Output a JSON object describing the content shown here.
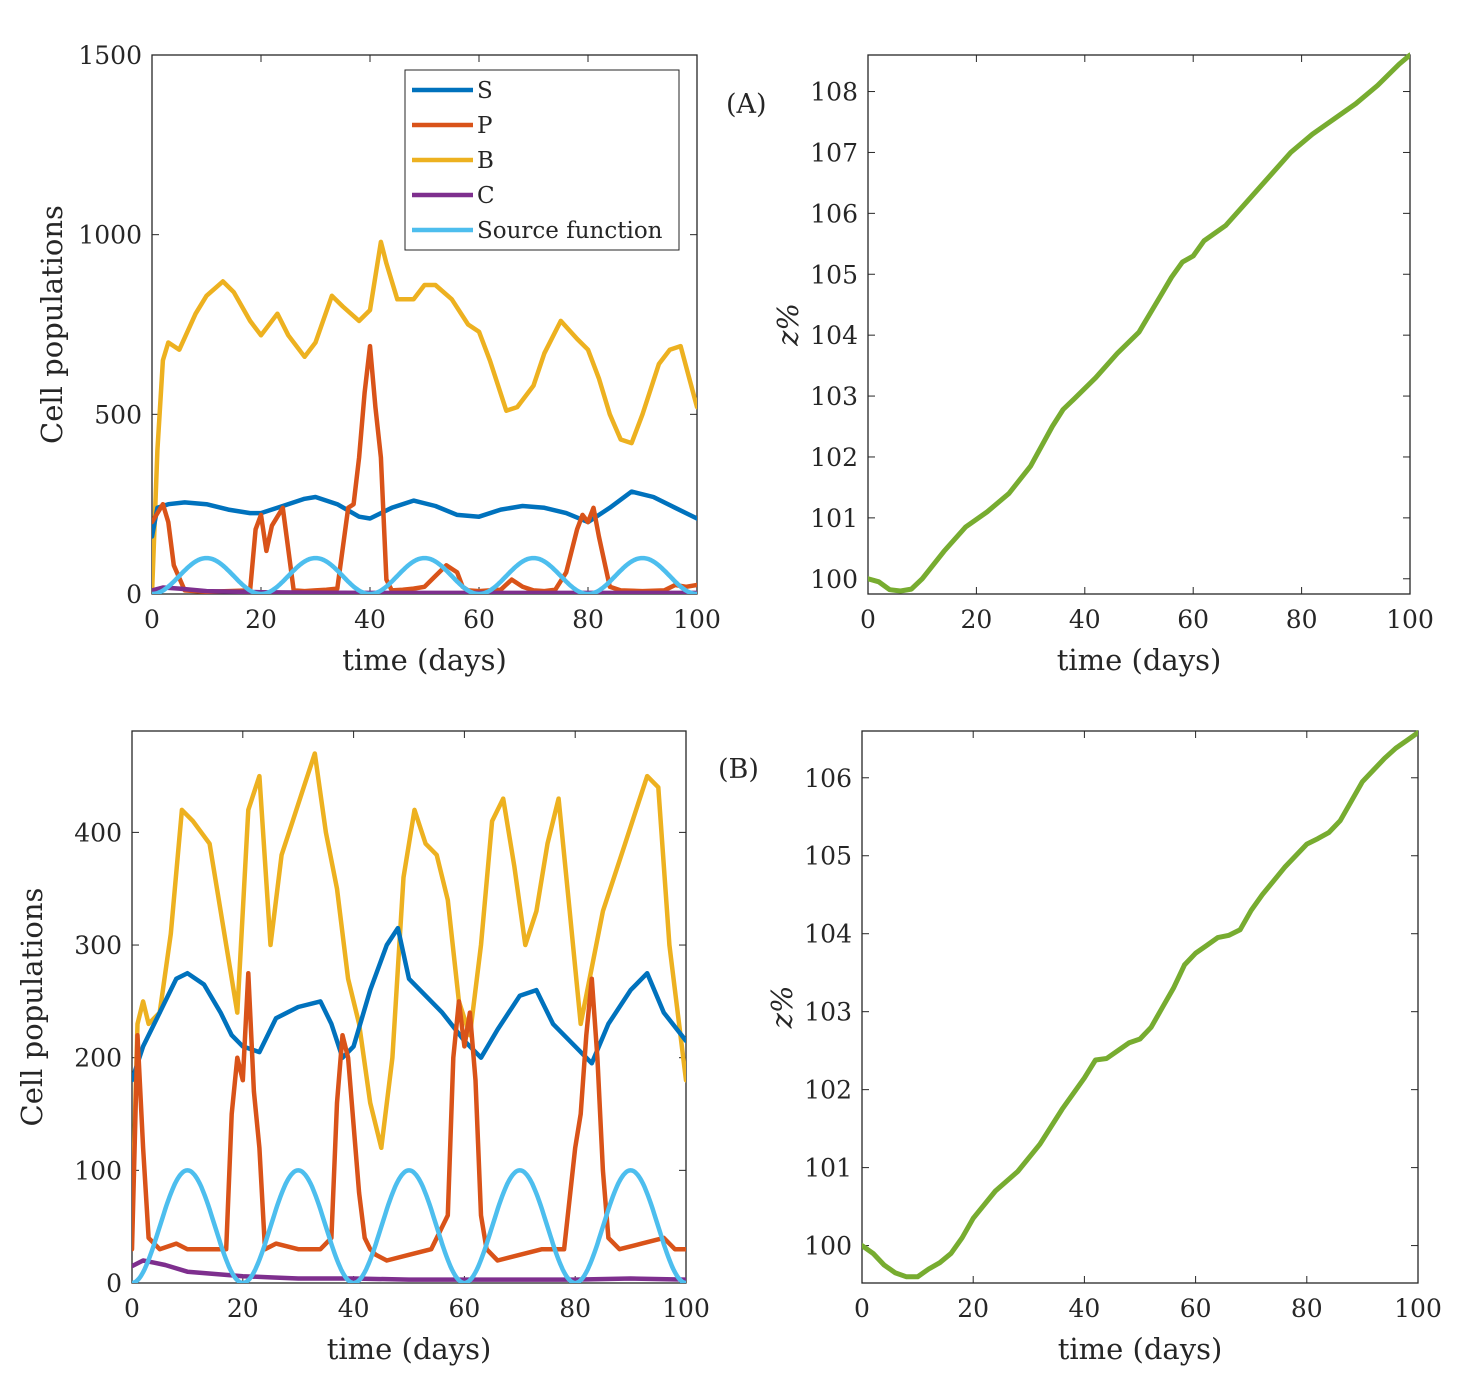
{
  "figure": {
    "panel_labels": [
      "(A)",
      "(B)"
    ]
  },
  "chart_data": [
    {
      "id": "A-left",
      "type": "line",
      "title": "",
      "xlabel": "time (days)",
      "ylabel": "Cell populations",
      "xlim": [
        0,
        100
      ],
      "ylim": [
        0,
        1500
      ],
      "xticks": [
        0,
        20,
        40,
        60,
        80,
        100
      ],
      "yticks": [
        0,
        500,
        1000,
        1500
      ],
      "legend": {
        "placement": "top-right",
        "entries": [
          "S",
          "P",
          "B",
          "C",
          "Source function"
        ]
      },
      "colors": {
        "S": "#0072BD",
        "P": "#D95319",
        "B": "#EDB120",
        "C": "#7E2F8E",
        "Source function": "#4DBEEE"
      },
      "series": [
        {
          "name": "S",
          "x": [
            0,
            1,
            3,
            6,
            10,
            14,
            18,
            20,
            24,
            28,
            30,
            34,
            38,
            40,
            44,
            48,
            52,
            56,
            60,
            64,
            68,
            72,
            76,
            80,
            84,
            88,
            92,
            96,
            100
          ],
          "values": [
            160,
            240,
            250,
            255,
            250,
            235,
            225,
            225,
            245,
            265,
            270,
            250,
            215,
            210,
            240,
            260,
            245,
            220,
            215,
            235,
            245,
            240,
            225,
            200,
            240,
            285,
            270,
            240,
            210
          ]
        },
        {
          "name": "P",
          "x": [
            0,
            2,
            3,
            4,
            6,
            8,
            10,
            14,
            18,
            19,
            20,
            21,
            22,
            24,
            26,
            28,
            30,
            32,
            34,
            36,
            37,
            38,
            39,
            40,
            41,
            42,
            43,
            44,
            46,
            48,
            50,
            52,
            54,
            56,
            57,
            58,
            60,
            62,
            64,
            66,
            68,
            70,
            72,
            74,
            76,
            78,
            79,
            80,
            81,
            82,
            84,
            86,
            90,
            94,
            96,
            98,
            100
          ],
          "values": [
            200,
            250,
            200,
            80,
            10,
            8,
            6,
            8,
            10,
            180,
            220,
            120,
            190,
            240,
            10,
            8,
            10,
            12,
            15,
            240,
            250,
            380,
            560,
            690,
            520,
            380,
            40,
            10,
            12,
            15,
            20,
            50,
            80,
            60,
            20,
            10,
            8,
            10,
            12,
            40,
            20,
            10,
            8,
            12,
            60,
            180,
            220,
            200,
            240,
            160,
            20,
            10,
            8,
            10,
            25,
            20,
            25
          ]
        },
        {
          "name": "B",
          "x": [
            0,
            1,
            2,
            3,
            5,
            8,
            10,
            13,
            15,
            18,
            20,
            23,
            25,
            28,
            30,
            33,
            35,
            38,
            40,
            42,
            43,
            45,
            48,
            50,
            52,
            55,
            58,
            60,
            62,
            65,
            67,
            70,
            72,
            75,
            78,
            80,
            82,
            84,
            86,
            88,
            90,
            93,
            95,
            97,
            100
          ],
          "values": [
            0,
            400,
            650,
            700,
            680,
            780,
            830,
            870,
            840,
            760,
            720,
            780,
            720,
            660,
            700,
            830,
            800,
            760,
            790,
            980,
            920,
            820,
            820,
            860,
            860,
            820,
            750,
            730,
            650,
            510,
            520,
            580,
            670,
            760,
            710,
            680,
            600,
            500,
            430,
            420,
            500,
            640,
            680,
            690,
            520
          ]
        },
        {
          "name": "C",
          "x": [
            0,
            2,
            5,
            10,
            20,
            30,
            40,
            50,
            60,
            70,
            80,
            90,
            100
          ],
          "values": [
            10,
            18,
            15,
            8,
            5,
            4,
            3,
            3,
            3,
            3,
            3,
            3,
            3
          ]
        },
        {
          "name": "Source function",
          "function": "50*(1-cos(2*pi*t/20))",
          "period": 20,
          "amplitude_peak": 100
        }
      ]
    },
    {
      "id": "A-right",
      "type": "line",
      "title": "",
      "xlabel": "time (days)",
      "ylabel": "z%",
      "xlim": [
        0,
        100
      ],
      "ylim": [
        99.75,
        108.6
      ],
      "xticks": [
        0,
        20,
        40,
        60,
        80,
        100
      ],
      "yticks": [
        100,
        101,
        102,
        103,
        104,
        105,
        106,
        107,
        108
      ],
      "colors": {
        "z%": "#77AC30"
      },
      "series": [
        {
          "name": "z%",
          "x": [
            0,
            2,
            4,
            6,
            8,
            10,
            14,
            18,
            22,
            26,
            30,
            34,
            36,
            38,
            42,
            46,
            50,
            54,
            56,
            58,
            60,
            62,
            66,
            70,
            74,
            78,
            82,
            86,
            90,
            94,
            98,
            100
          ],
          "values": [
            100.0,
            99.95,
            99.82,
            99.8,
            99.83,
            100.0,
            100.45,
            100.85,
            101.1,
            101.4,
            101.85,
            102.5,
            102.78,
            102.95,
            103.3,
            103.7,
            104.05,
            104.65,
            104.95,
            105.2,
            105.3,
            105.55,
            105.8,
            106.2,
            106.6,
            107.0,
            107.3,
            107.55,
            107.8,
            108.1,
            108.45,
            108.6
          ]
        }
      ]
    },
    {
      "id": "B-left",
      "type": "line",
      "title": "",
      "xlabel": "time (days)",
      "ylabel": "Cell populations",
      "xlim": [
        0,
        100
      ],
      "ylim": [
        0,
        490
      ],
      "xticks": [
        0,
        20,
        40,
        60,
        80,
        100
      ],
      "yticks": [
        0,
        100,
        200,
        300,
        400
      ],
      "colors": {
        "S": "#0072BD",
        "P": "#D95319",
        "B": "#EDB120",
        "C": "#7E2F8E",
        "Source function": "#4DBEEE"
      },
      "series": [
        {
          "name": "S",
          "x": [
            0,
            2,
            4,
            6,
            8,
            10,
            13,
            16,
            18,
            20,
            23,
            26,
            30,
            34,
            36,
            38,
            40,
            43,
            46,
            48,
            50,
            53,
            56,
            60,
            63,
            66,
            70,
            73,
            76,
            80,
            83,
            86,
            90,
            93,
            96,
            100
          ],
          "values": [
            180,
            210,
            230,
            250,
            270,
            275,
            265,
            240,
            220,
            210,
            205,
            235,
            245,
            250,
            230,
            200,
            210,
            260,
            300,
            315,
            270,
            255,
            240,
            215,
            200,
            225,
            255,
            260,
            230,
            210,
            195,
            230,
            260,
            275,
            240,
            215
          ]
        },
        {
          "name": "P",
          "x": [
            0,
            1,
            2,
            3,
            5,
            8,
            10,
            14,
            17,
            18,
            19,
            20,
            21,
            22,
            23,
            24,
            26,
            30,
            34,
            36,
            37,
            38,
            39,
            40,
            41,
            42,
            43,
            44,
            46,
            50,
            54,
            57,
            58,
            59,
            60,
            61,
            62,
            63,
            64,
            66,
            70,
            74,
            78,
            80,
            81,
            82,
            83,
            84,
            85,
            86,
            88,
            92,
            96,
            98,
            100
          ],
          "values": [
            30,
            220,
            120,
            40,
            30,
            35,
            30,
            30,
            30,
            150,
            200,
            180,
            275,
            170,
            120,
            30,
            35,
            30,
            30,
            40,
            160,
            220,
            200,
            140,
            80,
            40,
            30,
            25,
            20,
            25,
            30,
            60,
            200,
            250,
            210,
            240,
            180,
            60,
            30,
            20,
            25,
            30,
            30,
            120,
            150,
            220,
            270,
            200,
            100,
            40,
            30,
            35,
            40,
            30,
            30
          ]
        },
        {
          "name": "B",
          "x": [
            0,
            1,
            2,
            3,
            5,
            7,
            9,
            11,
            14,
            17,
            19,
            21,
            23,
            25,
            27,
            29,
            31,
            33,
            35,
            37,
            39,
            41,
            43,
            45,
            47,
            49,
            51,
            53,
            55,
            57,
            59,
            61,
            63,
            65,
            67,
            69,
            71,
            73,
            75,
            77,
            79,
            81,
            83,
            85,
            87,
            89,
            91,
            93,
            95,
            97,
            100
          ],
          "values": [
            50,
            230,
            250,
            230,
            240,
            310,
            420,
            410,
            390,
            300,
            240,
            420,
            450,
            300,
            380,
            410,
            440,
            470,
            400,
            350,
            270,
            230,
            160,
            120,
            200,
            360,
            420,
            390,
            380,
            340,
            250,
            220,
            300,
            410,
            430,
            370,
            300,
            330,
            390,
            430,
            330,
            230,
            280,
            330,
            360,
            390,
            420,
            450,
            440,
            300,
            180
          ]
        },
        {
          "name": "C",
          "x": [
            0,
            2,
            4,
            6,
            10,
            15,
            20,
            25,
            30,
            40,
            50,
            60,
            70,
            80,
            90,
            100
          ],
          "values": [
            15,
            20,
            18,
            16,
            10,
            8,
            6,
            5,
            4,
            4,
            3,
            3,
            3,
            3,
            4,
            3
          ]
        },
        {
          "name": "Source function",
          "function": "50*(1-cos(2*pi*t/20))",
          "period": 20,
          "amplitude_peak": 100
        }
      ]
    },
    {
      "id": "B-right",
      "type": "line",
      "title": "",
      "xlabel": "time (days)",
      "ylabel": "z%",
      "xlim": [
        0,
        100
      ],
      "ylim": [
        99.52,
        106.6
      ],
      "xticks": [
        0,
        20,
        40,
        60,
        80,
        100
      ],
      "yticks": [
        100,
        101,
        102,
        103,
        104,
        105,
        106
      ],
      "colors": {
        "z%": "#77AC30"
      },
      "series": [
        {
          "name": "z%",
          "x": [
            0,
            2,
            4,
            6,
            8,
            10,
            12,
            14,
            16,
            18,
            20,
            24,
            28,
            32,
            36,
            40,
            42,
            44,
            46,
            48,
            50,
            52,
            54,
            56,
            58,
            60,
            62,
            64,
            66,
            68,
            70,
            72,
            76,
            80,
            82,
            84,
            86,
            88,
            90,
            92,
            94,
            96,
            98,
            100
          ],
          "values": [
            100.0,
            99.9,
            99.75,
            99.65,
            99.6,
            99.6,
            99.7,
            99.78,
            99.9,
            100.1,
            100.35,
            100.7,
            100.95,
            101.3,
            101.75,
            102.15,
            102.38,
            102.4,
            102.5,
            102.6,
            102.65,
            102.8,
            103.05,
            103.3,
            103.6,
            103.75,
            103.85,
            103.95,
            103.98,
            104.05,
            104.3,
            104.5,
            104.85,
            105.15,
            105.22,
            105.3,
            105.45,
            105.7,
            105.95,
            106.1,
            106.25,
            106.38,
            106.48,
            106.58
          ]
        }
      ]
    }
  ]
}
